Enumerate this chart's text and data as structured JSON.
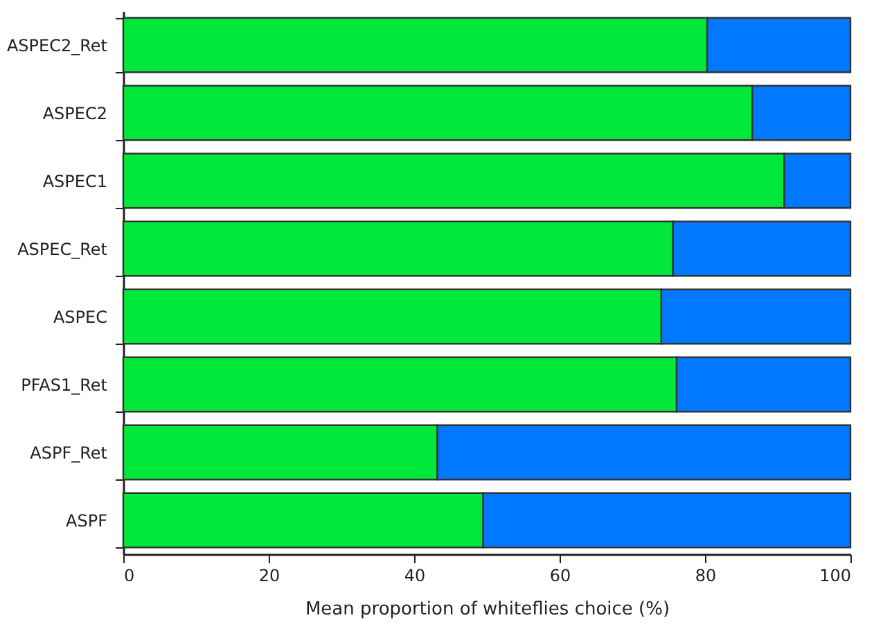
{
  "chart_data": {
    "type": "bar",
    "orientation": "horizontal",
    "stacked": true,
    "xlabel": "Mean proportion of whiteflies choice (%)",
    "categories": [
      "ASPEC2_Ret",
      "ASPEC2",
      "ASPEC1",
      "ASPEC_Ret",
      "ASPEC",
      "PFAS1_Ret",
      "ASPF_Ret",
      "ASPF"
    ],
    "series": [
      {
        "color": "#00e83a",
        "values": [
          80.3,
          86.5,
          90.9,
          75.6,
          74.0,
          76.1,
          43.2,
          49.5
        ]
      },
      {
        "color": "#0078ff",
        "values": [
          19.7,
          13.5,
          9.1,
          24.4,
          26.0,
          23.9,
          56.8,
          50.5
        ]
      }
    ],
    "xlim": [
      0,
      100
    ],
    "xticks": [
      0,
      20,
      40,
      60,
      80,
      100
    ],
    "grid": false,
    "legend": false
  }
}
